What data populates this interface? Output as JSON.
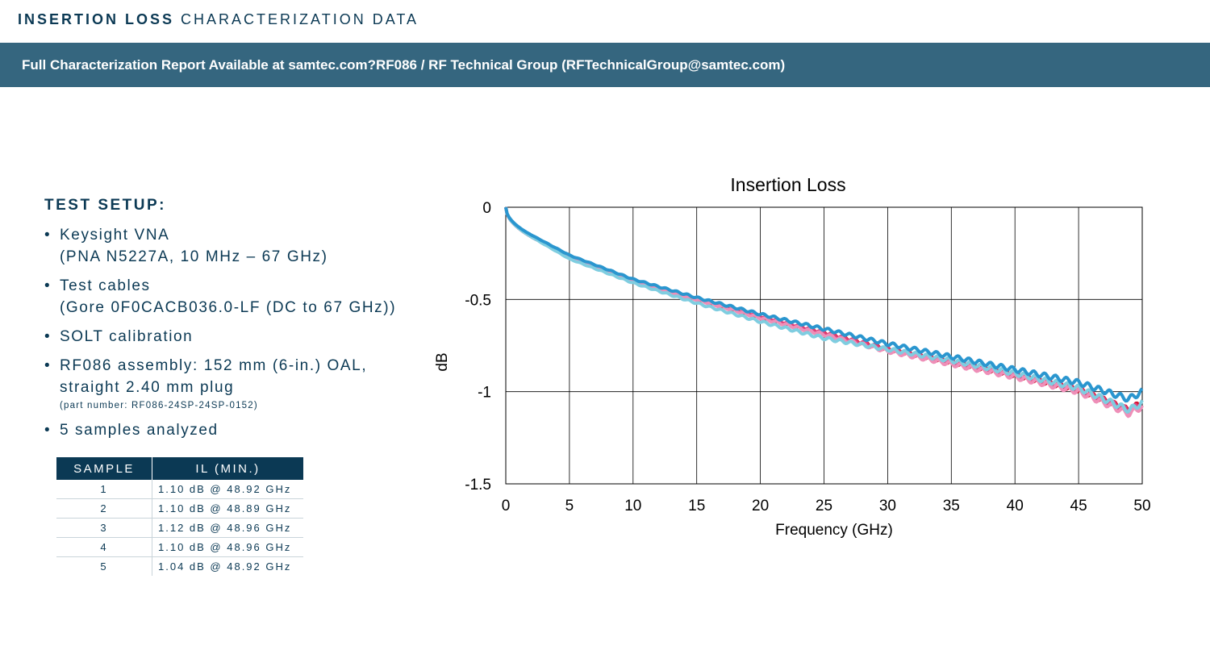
{
  "header": {
    "title_bold": "INSERTION LOSS",
    "title_rest": "CHARACTERIZATION DATA"
  },
  "banner": {
    "text": "Full Characterization Report Available at samtec.com?RF086  / RF Technical Group (RFTechnicalGroup@samtec.com)"
  },
  "test_setup": {
    "title": "TEST SETUP:",
    "bullet_char": "•",
    "items": [
      {
        "line1": "Keysight VNA",
        "line2": "(PNA N5227A, 10 MHz – 67 GHz)",
        "sub": ""
      },
      {
        "line1": "Test cables",
        "line2": "(Gore 0F0CACB036.0-LF (DC to 67 GHz))",
        "sub": ""
      },
      {
        "line1": "SOLT calibration",
        "line2": "",
        "sub": ""
      },
      {
        "line1": "RF086 assembly: 152 mm (6-in.) OAL,",
        "line2": "straight 2.40 mm plug",
        "sub": "(part number: RF086-24SP-24SP-0152)"
      },
      {
        "line1": "5 samples analyzed",
        "line2": "",
        "sub": ""
      }
    ]
  },
  "samples_table": {
    "headers": [
      "SAMPLE",
      "IL (MIN.)"
    ],
    "rows": [
      [
        "1",
        "1.10 dB @ 48.92 GHz"
      ],
      [
        "2",
        "1.10 dB @ 48.89 GHz"
      ],
      [
        "3",
        "1.12 dB @ 48.96 GHz"
      ],
      [
        "4",
        "1.10 dB @ 48.96 GHz"
      ],
      [
        "5",
        "1.04 dB @ 48.92 GHz"
      ]
    ]
  },
  "colors": {
    "header_text": "#0b3954",
    "banner_bg": "#35667f",
    "table_header_bg": "#0b3954"
  },
  "chart_data": {
    "type": "line",
    "title": "Insertion Loss",
    "xlabel": "Frequency (GHz)",
    "ylabel": "dB",
    "xlim": [
      0,
      50
    ],
    "ylim": [
      -1.5,
      0
    ],
    "xticks": [
      0,
      5,
      10,
      15,
      20,
      25,
      30,
      35,
      40,
      45,
      50
    ],
    "yticks": [
      0,
      -0.5,
      -1,
      -1.5
    ],
    "ytick_labels": [
      "0",
      "-0.5",
      "-1",
      "-1.5"
    ],
    "grid": true,
    "legend": "none",
    "series": [
      {
        "color": "#d5142f",
        "x": [
          0,
          1,
          2,
          5,
          10,
          15,
          20,
          25,
          30,
          35,
          40,
          45,
          48.92,
          50
        ],
        "y": [
          0,
          -0.11,
          -0.16,
          -0.27,
          -0.4,
          -0.5,
          -0.6,
          -0.68,
          -0.77,
          -0.84,
          -0.91,
          -0.99,
          -1.1,
          -1.06
        ]
      },
      {
        "color": "#e0407a",
        "x": [
          0,
          1,
          2,
          5,
          10,
          15,
          20,
          25,
          30,
          35,
          40,
          45,
          48.89,
          50
        ],
        "y": [
          0,
          -0.11,
          -0.16,
          -0.27,
          -0.4,
          -0.5,
          -0.59,
          -0.68,
          -0.77,
          -0.84,
          -0.91,
          -0.99,
          -1.1,
          -1.07
        ]
      },
      {
        "color": "#ee8fb8",
        "x": [
          0,
          1,
          2,
          5,
          10,
          15,
          20,
          25,
          30,
          35,
          40,
          45,
          48.96,
          50
        ],
        "y": [
          0,
          -0.11,
          -0.16,
          -0.27,
          -0.4,
          -0.5,
          -0.6,
          -0.69,
          -0.78,
          -0.85,
          -0.92,
          -1.0,
          -1.12,
          -1.08
        ]
      },
      {
        "color": "#7fcde0",
        "x": [
          0,
          1,
          2,
          5,
          10,
          15,
          20,
          25,
          30,
          35,
          40,
          45,
          48.96,
          50
        ],
        "y": [
          0,
          -0.11,
          -0.16,
          -0.28,
          -0.41,
          -0.52,
          -0.62,
          -0.71,
          -0.77,
          -0.83,
          -0.9,
          -0.98,
          -1.1,
          -1.06
        ]
      },
      {
        "color": "#2a96cf",
        "x": [
          0,
          1,
          2,
          5,
          10,
          15,
          20,
          25,
          30,
          35,
          40,
          45,
          48.92,
          50
        ],
        "y": [
          0,
          -0.1,
          -0.15,
          -0.26,
          -0.39,
          -0.49,
          -0.58,
          -0.66,
          -0.74,
          -0.81,
          -0.88,
          -0.95,
          -1.04,
          -1.0
        ]
      }
    ]
  }
}
